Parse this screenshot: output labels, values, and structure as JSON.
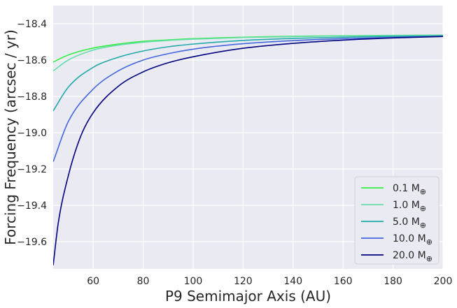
{
  "chart_data": {
    "type": "line",
    "title": "",
    "xlabel": "P9 Semimajor Axis (AU)",
    "ylabel": "Forcing Frequency (arcsec / yr)",
    "xlim": [
      44,
      200
    ],
    "ylim": [
      -19.75,
      -18.3
    ],
    "xticks": [
      60,
      80,
      100,
      120,
      140,
      160,
      180,
      200
    ],
    "yticks": [
      -18.4,
      -18.6,
      -18.8,
      -19.0,
      -19.2,
      -19.4,
      -19.6
    ],
    "grid": true,
    "legend_position": "lower-right",
    "legend_unit_symbol": "⊕",
    "series": [
      {
        "name": "0.1 M",
        "color": "#33ee44",
        "x": [
          44,
          50,
          60,
          70,
          80,
          90,
          100,
          120,
          140,
          160,
          180,
          200
        ],
        "y": [
          -18.611,
          -18.572,
          -18.534,
          -18.512,
          -18.497,
          -18.489,
          -18.482,
          -18.474,
          -18.469,
          -18.466,
          -18.464,
          -18.463
        ]
      },
      {
        "name": "1.0 M",
        "color": "#66ddaa",
        "x": [
          44,
          50,
          60,
          70,
          80,
          90,
          100,
          120,
          140,
          160,
          180,
          200
        ],
        "y": [
          -18.66,
          -18.6,
          -18.545,
          -18.518,
          -18.502,
          -18.492,
          -18.485,
          -18.476,
          -18.471,
          -18.467,
          -18.465,
          -18.463
        ]
      },
      {
        "name": "5.0 M",
        "color": "#22aaaa",
        "x": [
          44,
          50,
          60,
          70,
          80,
          90,
          100,
          120,
          140,
          160,
          180,
          200
        ],
        "y": [
          -18.88,
          -18.75,
          -18.64,
          -18.585,
          -18.55,
          -18.527,
          -18.512,
          -18.492,
          -18.481,
          -18.474,
          -18.469,
          -18.466
        ]
      },
      {
        "name": "10.0 M",
        "color": "#4466dd",
        "x": [
          44,
          50,
          60,
          70,
          80,
          90,
          100,
          120,
          140,
          160,
          180,
          200
        ],
        "y": [
          -19.16,
          -18.94,
          -18.76,
          -18.66,
          -18.6,
          -18.565,
          -18.54,
          -18.51,
          -18.493,
          -18.482,
          -18.475,
          -18.47
        ]
      },
      {
        "name": "20.0 M",
        "color": "#000080",
        "x": [
          44,
          46,
          50,
          55,
          60,
          70,
          80,
          90,
          100,
          120,
          140,
          160,
          180,
          200
        ],
        "y": [
          -19.73,
          -19.5,
          -19.24,
          -19.02,
          -18.89,
          -18.745,
          -18.665,
          -18.615,
          -18.582,
          -18.535,
          -18.508,
          -18.49,
          -18.478,
          -18.47
        ]
      }
    ]
  }
}
